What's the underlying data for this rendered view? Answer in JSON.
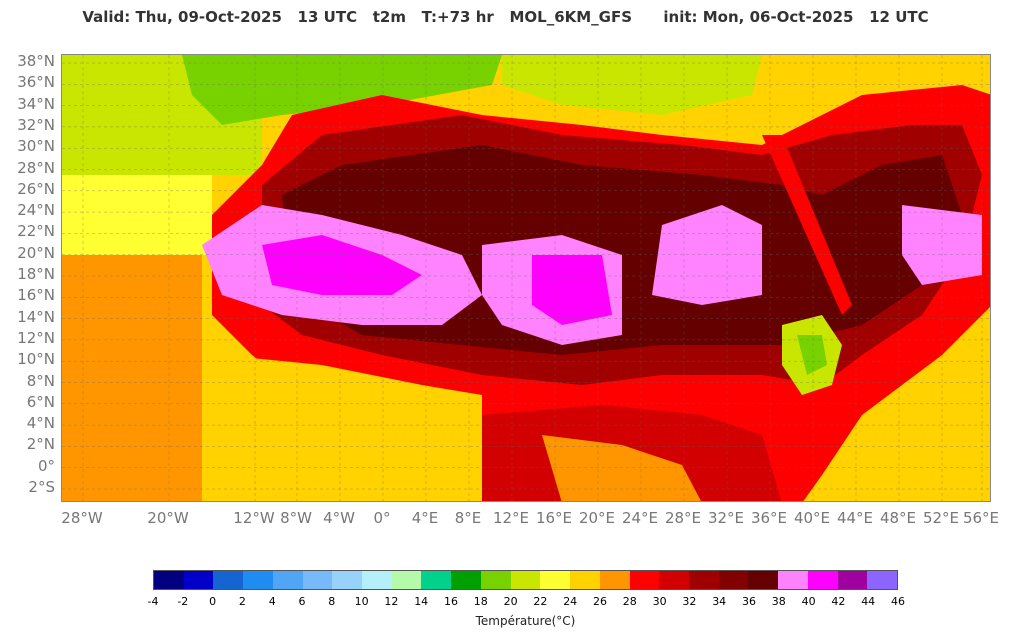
{
  "header": {
    "title": "Valid: Thu, 09-Oct-2025   13 UTC   t2m   T:+73 hr   MOL_6KM_GFS      init: Mon, 06-Oct-2025   12 UTC"
  },
  "map": {
    "lat_labels": [
      "38°N",
      "36°N",
      "34°N",
      "32°N",
      "30°N",
      "28°N",
      "26°N",
      "24°N",
      "22°N",
      "20°N",
      "18°N",
      "16°N",
      "14°N",
      "12°N",
      "10°N",
      "8°N",
      "6°N",
      "4°N",
      "2°N",
      "0°",
      "2°S"
    ],
    "lon_labels": [
      "28°W",
      "20°W",
      "12°W",
      "8°W",
      "4°W",
      "0°",
      "4°E",
      "8°E",
      "12°E",
      "16°E",
      "20°E",
      "24°E",
      "28°E",
      "32°E",
      "36°E",
      "40°E",
      "44°E",
      "48°E",
      "52°E",
      "56°E"
    ]
  },
  "colorbar": {
    "colors": [
      "#000080",
      "#0000c8",
      "#1464d2",
      "#1e8cf0",
      "#50a5f5",
      "#78b9fa",
      "#96d2fa",
      "#b4f0fa",
      "#b4faaa",
      "#00d28c",
      "#00a000",
      "#78d200",
      "#c8e600",
      "#ffff32",
      "#ffd200",
      "#ff9600",
      "#ff0000",
      "#d20000",
      "#a00000",
      "#820000",
      "#640000",
      "#ff82ff",
      "#ff00ff",
      "#a000a0",
      "#8c64ff"
    ],
    "ticks": [
      "-4",
      "-2",
      "0",
      "2",
      "4",
      "6",
      "8",
      "10",
      "12",
      "14",
      "16",
      "18",
      "20",
      "22",
      "24",
      "26",
      "28",
      "30",
      "32",
      "34",
      "36",
      "38",
      "40",
      "42",
      "44",
      "46"
    ],
    "label": "Température(°C)"
  }
}
